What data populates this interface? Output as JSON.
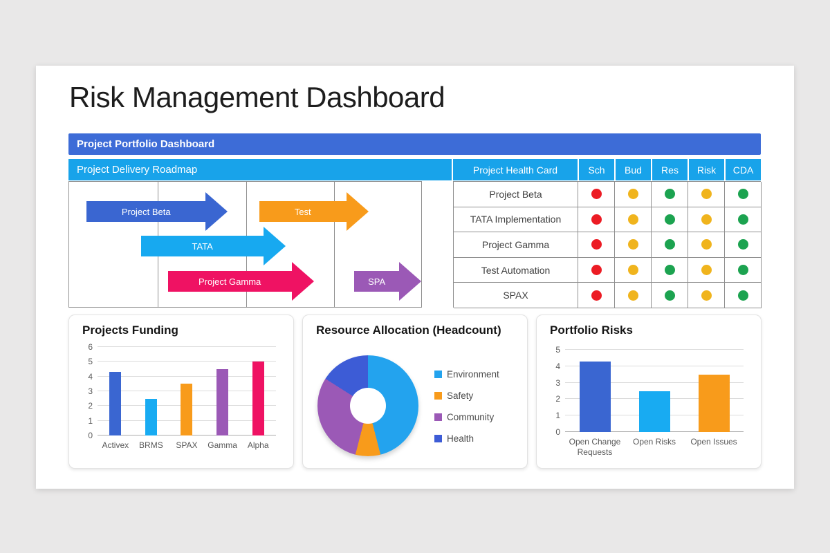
{
  "slide": {
    "title": "Risk Management Dashboard"
  },
  "banner": {
    "label": "Project Portfolio Dashboard",
    "bg": "#3d6cd7"
  },
  "roadmap": {
    "header": "Project Delivery Roadmap",
    "header_bg": "#18a3ea",
    "arrows": [
      {
        "label": "Project Beta",
        "color": "#3a66d1",
        "row": 0,
        "left_pct": 5,
        "width_pct": 40
      },
      {
        "label": "Test",
        "color": "#f89b1b",
        "row": 0,
        "left_pct": 54,
        "width_pct": 31
      },
      {
        "label": "TATA",
        "color": "#17a9f0",
        "row": 1,
        "left_pct": 20.5,
        "width_pct": 41
      },
      {
        "label": "Project Gamma",
        "color": "#ef1263",
        "row": 2,
        "left_pct": 28,
        "width_pct": 41.5
      },
      {
        "label": "SPA",
        "color": "#9b59b6",
        "row": 2,
        "left_pct": 81,
        "width_pct": 19
      }
    ]
  },
  "health_card": {
    "header": "Project Health Card",
    "columns": [
      "Sch",
      "Bud",
      "Res",
      "Risk",
      "CDA"
    ],
    "status_colors": {
      "red": "#ec1c24",
      "yellow": "#f0b41d",
      "green": "#1ca350"
    },
    "rows": [
      {
        "name": "Project Beta",
        "statuses": [
          "red",
          "yellow",
          "green",
          "yellow",
          "green"
        ]
      },
      {
        "name": "TATA Implementation",
        "statuses": [
          "red",
          "yellow",
          "green",
          "yellow",
          "green"
        ]
      },
      {
        "name": "Project Gamma",
        "statuses": [
          "red",
          "yellow",
          "green",
          "yellow",
          "green"
        ]
      },
      {
        "name": "Test Automation",
        "statuses": [
          "red",
          "yellow",
          "green",
          "yellow",
          "green"
        ]
      },
      {
        "name": "SPAX",
        "statuses": [
          "red",
          "yellow",
          "green",
          "yellow",
          "green"
        ]
      }
    ]
  },
  "chart_data": [
    {
      "id": "projects_funding",
      "type": "bar",
      "title": "Projects Funding",
      "categories": [
        "Activex",
        "BRMS",
        "SPAX",
        "Gamma",
        "Alpha"
      ],
      "values": [
        4.3,
        2.5,
        3.5,
        4.5,
        5
      ],
      "colors": [
        "#3a66d1",
        "#18abf2",
        "#f89b1b",
        "#9b59b6",
        "#ef1263"
      ],
      "ylim": [
        0,
        6
      ],
      "yticks": [
        0,
        1,
        2,
        3,
        4,
        5,
        6
      ],
      "grid": true,
      "legend_position": "none"
    },
    {
      "id": "resource_allocation",
      "type": "pie",
      "title": "Resource Allocation (Headcount)",
      "donut": true,
      "legend_position": "right",
      "slices": [
        {
          "label": "Environment",
          "value": 46,
          "color": "#23a3ee"
        },
        {
          "label": "Safety",
          "value": 8,
          "color": "#f89b1b"
        },
        {
          "label": "Community",
          "value": 30,
          "color": "#9b59b6"
        },
        {
          "label": "Health",
          "value": 16,
          "color": "#3d5cd6"
        }
      ]
    },
    {
      "id": "portfolio_risks",
      "type": "bar",
      "title": "Portfolio Risks",
      "categories": [
        "Open Change Requests",
        "Open Risks",
        "Open Issues"
      ],
      "values": [
        4.3,
        2.5,
        3.5
      ],
      "colors": [
        "#3a66d1",
        "#18abf2",
        "#f89b1b"
      ],
      "ylim": [
        0,
        5
      ],
      "yticks": [
        0,
        1,
        2,
        3,
        4,
        5
      ],
      "grid": true,
      "legend_position": "none"
    }
  ]
}
